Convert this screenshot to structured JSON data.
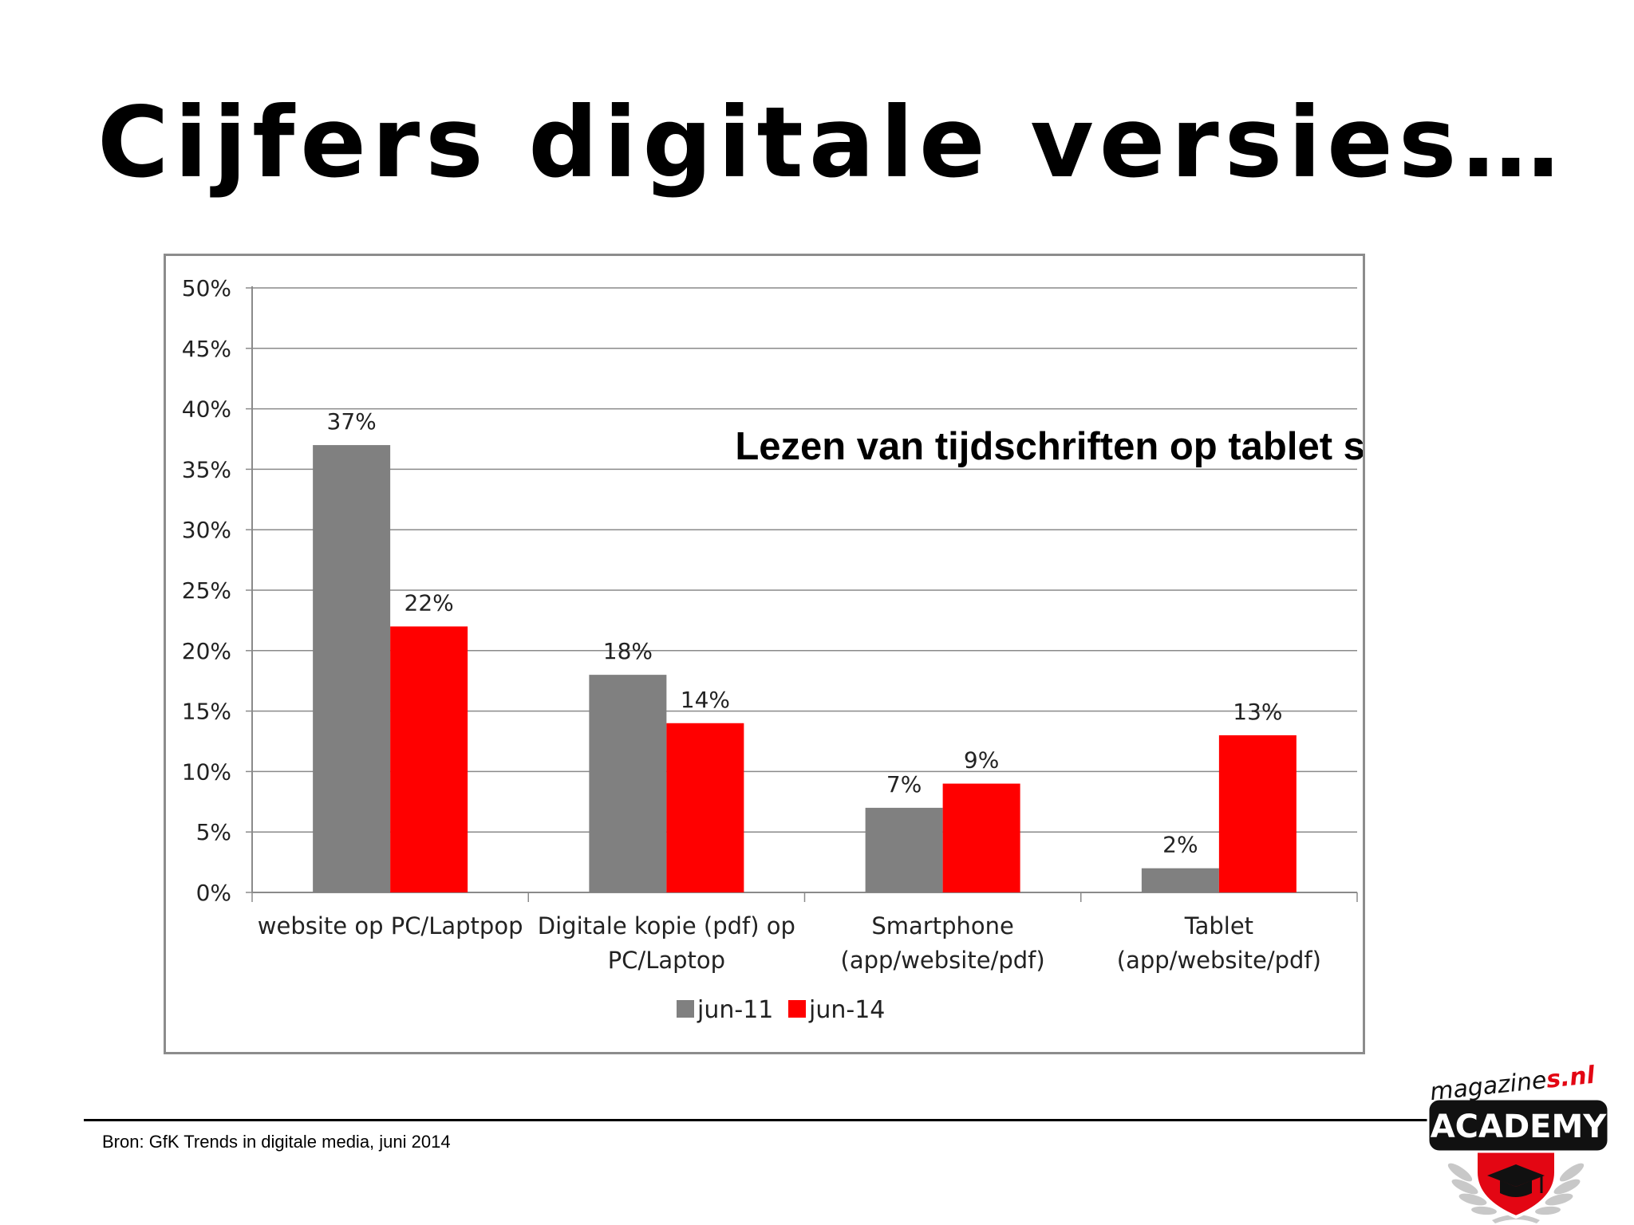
{
  "slide": {
    "title": "Cijfers digitale versies…",
    "source": "Bron: GfK Trends in digitale media, juni 2014"
  },
  "chart_data": {
    "type": "bar",
    "title": "Lezen van tijdschriften op tablet stijgt",
    "xlabel": "",
    "ylabel": "",
    "ylim": [
      0,
      50
    ],
    "yticks": [
      0,
      5,
      10,
      15,
      20,
      25,
      30,
      35,
      40,
      45,
      50
    ],
    "tick_suffix": "%",
    "grid": true,
    "legend_position": "bottom-center",
    "categories": [
      [
        "website op PC/Laptpop"
      ],
      [
        "Digitale kopie (pdf) op",
        "PC/Laptop"
      ],
      [
        "Smartphone",
        "(app/website/pdf)"
      ],
      [
        "Tablet",
        "(app/website/pdf)"
      ]
    ],
    "series": [
      {
        "name": "jun-11",
        "color": "#808080",
        "values": [
          37,
          18,
          7,
          2
        ],
        "labels": [
          "37%",
          "18%",
          "7%",
          "2%"
        ]
      },
      {
        "name": "jun-14",
        "color": "#ff0000",
        "values": [
          22,
          14,
          9,
          13
        ],
        "labels": [
          "22%",
          "14%",
          "9%",
          "13%"
        ]
      }
    ]
  },
  "logo": {
    "wordmark_prefix": "magazine",
    "wordmark_suffix": "s.nl",
    "badge": "ACADEMY",
    "colors": {
      "red": "#e30613",
      "black": "#111111"
    }
  }
}
